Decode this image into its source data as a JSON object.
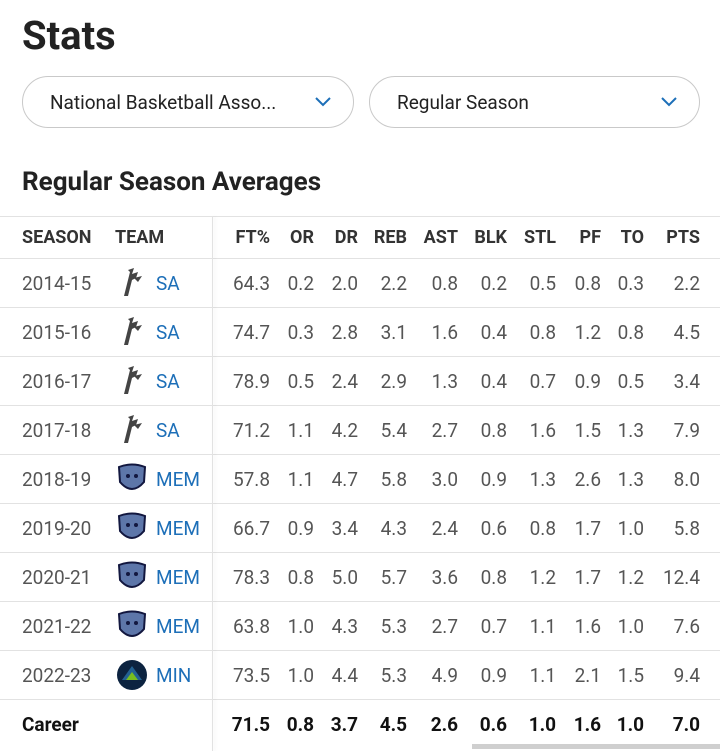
{
  "title": "Stats",
  "filters": [
    "National Basketball Asso...",
    "Regular Season"
  ],
  "section_title": "Regular Season Averages",
  "table": {
    "columns": [
      "SEASON",
      "TEAM",
      "FT%",
      "OR",
      "DR",
      "REB",
      "AST",
      "BLK",
      "STL",
      "PF",
      "TO",
      "PTS"
    ],
    "rows": [
      [
        "2014-15",
        "SA",
        "64.3",
        "0.2",
        "2.0",
        "2.2",
        "0.8",
        "0.2",
        "0.5",
        "0.8",
        "0.3",
        "2.2"
      ],
      [
        "2015-16",
        "SA",
        "74.7",
        "0.3",
        "2.8",
        "3.1",
        "1.6",
        "0.4",
        "0.8",
        "1.2",
        "0.8",
        "4.5"
      ],
      [
        "2016-17",
        "SA",
        "78.9",
        "0.5",
        "2.4",
        "2.9",
        "1.3",
        "0.4",
        "0.7",
        "0.9",
        "0.5",
        "3.4"
      ],
      [
        "2017-18",
        "SA",
        "71.2",
        "1.1",
        "4.2",
        "5.4",
        "2.7",
        "0.8",
        "1.6",
        "1.5",
        "1.3",
        "7.9"
      ],
      [
        "2018-19",
        "MEM",
        "57.8",
        "1.1",
        "4.7",
        "5.8",
        "3.0",
        "0.9",
        "1.3",
        "2.6",
        "1.3",
        "8.0"
      ],
      [
        "2019-20",
        "MEM",
        "66.7",
        "0.9",
        "3.4",
        "4.3",
        "2.4",
        "0.6",
        "0.8",
        "1.7",
        "1.0",
        "5.8"
      ],
      [
        "2020-21",
        "MEM",
        "78.3",
        "0.8",
        "5.0",
        "5.7",
        "3.6",
        "0.8",
        "1.2",
        "1.7",
        "1.2",
        "12.4"
      ],
      [
        "2021-22",
        "MEM",
        "63.8",
        "1.0",
        "4.3",
        "5.3",
        "2.7",
        "0.7",
        "1.1",
        "1.6",
        "1.0",
        "7.6"
      ],
      [
        "2022-23",
        "MIN",
        "73.5",
        "1.0",
        "4.4",
        "5.3",
        "4.9",
        "0.9",
        "1.1",
        "2.1",
        "1.5",
        "9.4"
      ]
    ],
    "career": {
      "label": "Career",
      "stats": [
        "71.5",
        "0.8",
        "3.7",
        "4.5",
        "2.6",
        "0.6",
        "1.0",
        "1.6",
        "1.0",
        "7.0"
      ]
    }
  }
}
